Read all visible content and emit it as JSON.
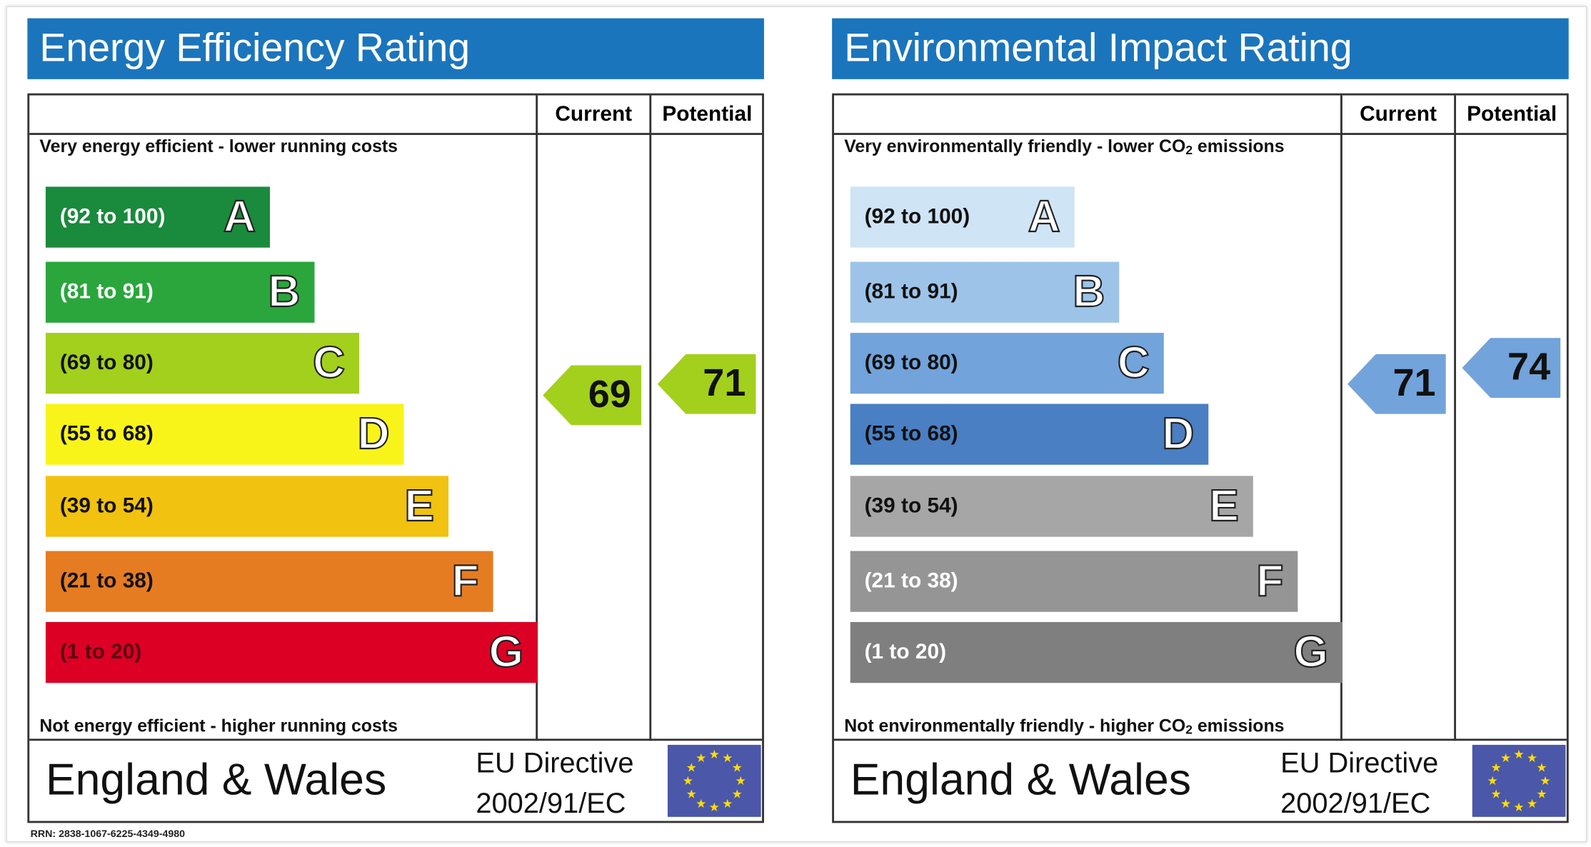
{
  "energy": {
    "title": "Energy Efficiency Rating",
    "col_current": "Current",
    "col_potential": "Potential",
    "top_text": "Very energy efficient - lower running costs",
    "bottom_text": "Not energy efficient - higher running costs",
    "bands": [
      {
        "range": "(92 to 100)",
        "letter": "A",
        "color": "#1a8a3c",
        "text_color": "#ffffff"
      },
      {
        "range": "(81 to 91)",
        "letter": "B",
        "color": "#2aa63c",
        "text_color": "#ffffff"
      },
      {
        "range": "(69 to 80)",
        "letter": "C",
        "color": "#a3d01c",
        "text_color": "#111111"
      },
      {
        "range": "(55 to 68)",
        "letter": "D",
        "color": "#f8f41a",
        "text_color": "#111111"
      },
      {
        "range": "(39 to 54)",
        "letter": "E",
        "color": "#f1c20f",
        "text_color": "#111111"
      },
      {
        "range": "(21 to 38)",
        "letter": "F",
        "color": "#e67c22",
        "text_color": "#111111"
      },
      {
        "range": "(1 to 20)",
        "letter": "G",
        "color": "#dc0024",
        "text_color": "#5a0010"
      }
    ],
    "current": {
      "value": "69",
      "color": "#a3d01c"
    },
    "potential": {
      "value": "71",
      "color": "#a3d01c"
    },
    "region": "England & Wales",
    "directive_line1": "EU Directive",
    "directive_line2": "2002/91/EC"
  },
  "environment": {
    "title": "Environmental Impact Rating",
    "col_current": "Current",
    "col_potential": "Potential",
    "top_text_pre": "Very environmentally friendly - lower CO",
    "top_text_sub": "2",
    "top_text_post": " emissions",
    "bottom_text_pre": "Not environmentally friendly - higher CO",
    "bottom_text_sub": "2",
    "bottom_text_post": " emissions",
    "bands": [
      {
        "range": "(92 to 100)",
        "letter": "A",
        "color": "#cfe4f4",
        "text_color": "#111111"
      },
      {
        "range": "(81 to 91)",
        "letter": "B",
        "color": "#9dc4e8",
        "text_color": "#111111"
      },
      {
        "range": "(69 to 80)",
        "letter": "C",
        "color": "#72a3da",
        "text_color": "#111111"
      },
      {
        "range": "(55 to 68)",
        "letter": "D",
        "color": "#4a7fc3",
        "text_color": "#111111"
      },
      {
        "range": "(39 to 54)",
        "letter": "E",
        "color": "#a6a6a6",
        "text_color": "#111111"
      },
      {
        "range": "(21 to 38)",
        "letter": "F",
        "color": "#959595",
        "text_color": "#ffffff"
      },
      {
        "range": "(1 to 20)",
        "letter": "G",
        "color": "#7f7f80",
        "text_color": "#ffffff"
      }
    ],
    "current": {
      "value": "71",
      "color": "#72a3da"
    },
    "potential": {
      "value": "74",
      "color": "#72a3da"
    },
    "region": "England & Wales",
    "directive_line1": "EU Directive",
    "directive_line2": "2002/91/EC"
  },
  "rrn": "RRN: 2838-1067-6225-4349-4980",
  "flag_icon": "eu-flag-icon"
}
